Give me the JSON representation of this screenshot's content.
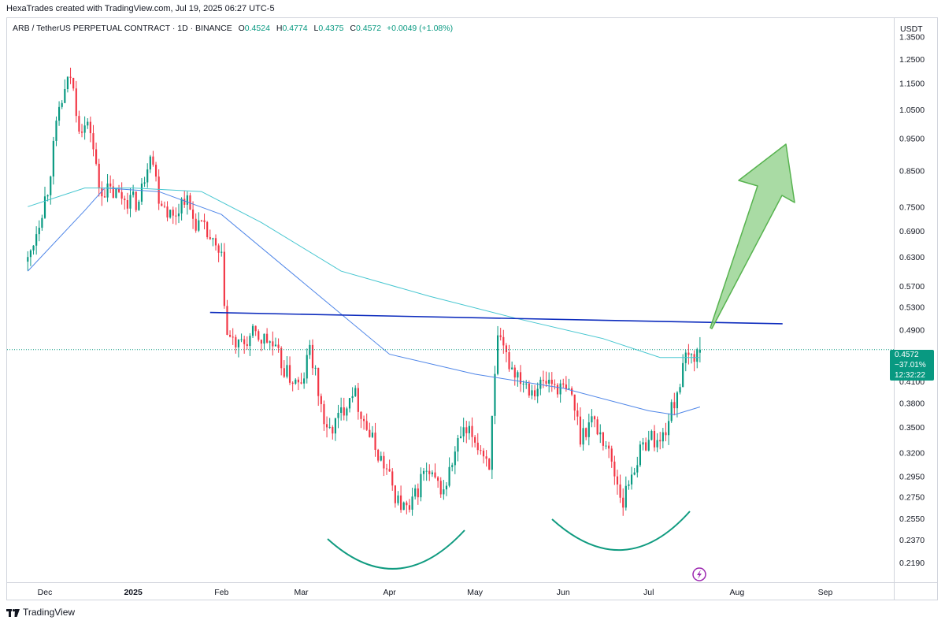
{
  "header": {
    "attribution": "HexaTrades created with TradingView.com, Jul 19, 2025 06:27 UTC-5"
  },
  "legend": {
    "symbol": "ARB / TetherUS PERPETUAL CONTRACT · 1D · BINANCE",
    "open_label": "O",
    "open": "0.4524",
    "high_label": "H",
    "high": "0.4774",
    "low_label": "L",
    "low": "0.4375",
    "close_label": "C",
    "close": "0.4572",
    "change": "+0.0049 (+1.08%)"
  },
  "price_axis": {
    "currency": "USDT"
  },
  "price_badge": {
    "price": "0.4572",
    "change_pct": "−37.01%",
    "countdown": "12:32:22"
  },
  "footer": {
    "brand": "TradingView"
  },
  "colors": {
    "up": "#089981",
    "down": "#f23645",
    "ma_fast": "#4f86e8",
    "ma_slow": "#46c6d0",
    "trendline": "#0c2bbd",
    "arcs": "#109b80",
    "arrow": "#6cc26a"
  },
  "chart_data": {
    "type": "candlestick",
    "y_scale": "log",
    "ylim": [
      0.205,
      1.44
    ],
    "y_ticks": [
      "1.3500",
      "1.2500",
      "1.1500",
      "1.0500",
      "0.9500",
      "0.8500",
      "0.7500",
      "0.6900",
      "0.6300",
      "0.5700",
      "0.5300",
      "0.4900",
      "0.4100",
      "0.3800",
      "0.3500",
      "0.3200",
      "0.2950",
      "0.2750",
      "0.2550",
      "0.2370",
      "0.2190"
    ],
    "x_ticks": [
      "Dec",
      "2025",
      "Feb",
      "Mar",
      "Apr",
      "May",
      "Jun",
      "Jul",
      "Aug",
      "Sep"
    ],
    "anchors": [
      {
        "d": "2024-11-25",
        "p": 0.62
      },
      {
        "d": "2024-12-02",
        "p": 0.8
      },
      {
        "d": "2024-12-06",
        "p": 1.05
      },
      {
        "d": "2024-12-10",
        "p": 1.18
      },
      {
        "d": "2024-12-13",
        "p": 1.0
      },
      {
        "d": "2024-12-17",
        "p": 0.98
      },
      {
        "d": "2024-12-20",
        "p": 0.8
      },
      {
        "d": "2024-12-27",
        "p": 0.78
      },
      {
        "d": "2025-01-03",
        "p": 0.76
      },
      {
        "d": "2025-01-07",
        "p": 0.92
      },
      {
        "d": "2025-01-10",
        "p": 0.78
      },
      {
        "d": "2025-01-15",
        "p": 0.72
      },
      {
        "d": "2025-01-19",
        "p": 0.78
      },
      {
        "d": "2025-01-22",
        "p": 0.72
      },
      {
        "d": "2025-01-27",
        "p": 0.68
      },
      {
        "d": "2025-02-01",
        "p": 0.62
      },
      {
        "d": "2025-02-03",
        "p": 0.48
      },
      {
        "d": "2025-02-07",
        "p": 0.46
      },
      {
        "d": "2025-02-12",
        "p": 0.48
      },
      {
        "d": "2025-02-18",
        "p": 0.47
      },
      {
        "d": "2025-02-24",
        "p": 0.42
      },
      {
        "d": "2025-03-01",
        "p": 0.4
      },
      {
        "d": "2025-03-04",
        "p": 0.46
      },
      {
        "d": "2025-03-10",
        "p": 0.34
      },
      {
        "d": "2025-03-14",
        "p": 0.36
      },
      {
        "d": "2025-03-19",
        "p": 0.4
      },
      {
        "d": "2025-03-25",
        "p": 0.34
      },
      {
        "d": "2025-03-31",
        "p": 0.3
      },
      {
        "d": "2025-04-04",
        "p": 0.27
      },
      {
        "d": "2025-04-08",
        "p": 0.26
      },
      {
        "d": "2025-04-13",
        "p": 0.3
      },
      {
        "d": "2025-04-20",
        "p": 0.28
      },
      {
        "d": "2025-04-26",
        "p": 0.34
      },
      {
        "d": "2025-04-30",
        "p": 0.34
      },
      {
        "d": "2025-05-06",
        "p": 0.31
      },
      {
        "d": "2025-05-09",
        "p": 0.47
      },
      {
        "d": "2025-05-14",
        "p": 0.43
      },
      {
        "d": "2025-05-21",
        "p": 0.4
      },
      {
        "d": "2025-05-27",
        "p": 0.41
      },
      {
        "d": "2025-06-04",
        "p": 0.39
      },
      {
        "d": "2025-06-07",
        "p": 0.34
      },
      {
        "d": "2025-06-11",
        "p": 0.36
      },
      {
        "d": "2025-06-16",
        "p": 0.33
      },
      {
        "d": "2025-06-22",
        "p": 0.27
      },
      {
        "d": "2025-06-25",
        "p": 0.3
      },
      {
        "d": "2025-07-01",
        "p": 0.34
      },
      {
        "d": "2025-07-05",
        "p": 0.33
      },
      {
        "d": "2025-07-09",
        "p": 0.37
      },
      {
        "d": "2025-07-14",
        "p": 0.44
      },
      {
        "d": "2025-07-19",
        "p": 0.4572
      }
    ],
    "ma_fast": [
      {
        "d": "2024-11-25",
        "p": 0.6
      },
      {
        "d": "2024-12-15",
        "p": 0.74
      },
      {
        "d": "2024-12-22",
        "p": 0.8
      },
      {
        "d": "2025-01-10",
        "p": 0.79
      },
      {
        "d": "2025-02-01",
        "p": 0.73
      },
      {
        "d": "2025-03-01",
        "p": 0.58
      },
      {
        "d": "2025-04-01",
        "p": 0.45
      },
      {
        "d": "2025-05-01",
        "p": 0.42
      },
      {
        "d": "2025-06-01",
        "p": 0.4
      },
      {
        "d": "2025-07-01",
        "p": 0.37
      },
      {
        "d": "2025-07-10",
        "p": 0.365
      },
      {
        "d": "2025-07-19",
        "p": 0.375
      }
    ],
    "ma_slow": [
      {
        "d": "2024-11-25",
        "p": 0.75
      },
      {
        "d": "2024-12-15",
        "p": 0.8
      },
      {
        "d": "2025-01-01",
        "p": 0.8
      },
      {
        "d": "2025-01-25",
        "p": 0.79
      },
      {
        "d": "2025-02-15",
        "p": 0.71
      },
      {
        "d": "2025-03-15",
        "p": 0.6
      },
      {
        "d": "2025-04-15",
        "p": 0.55
      },
      {
        "d": "2025-05-15",
        "p": 0.51
      },
      {
        "d": "2025-06-15",
        "p": 0.475
      },
      {
        "d": "2025-07-05",
        "p": 0.445
      },
      {
        "d": "2025-07-19",
        "p": 0.445
      }
    ],
    "neckline": [
      {
        "d": "2025-01-28",
        "p": 0.52
      },
      {
        "d": "2025-08-17",
        "p": 0.5
      }
    ]
  }
}
